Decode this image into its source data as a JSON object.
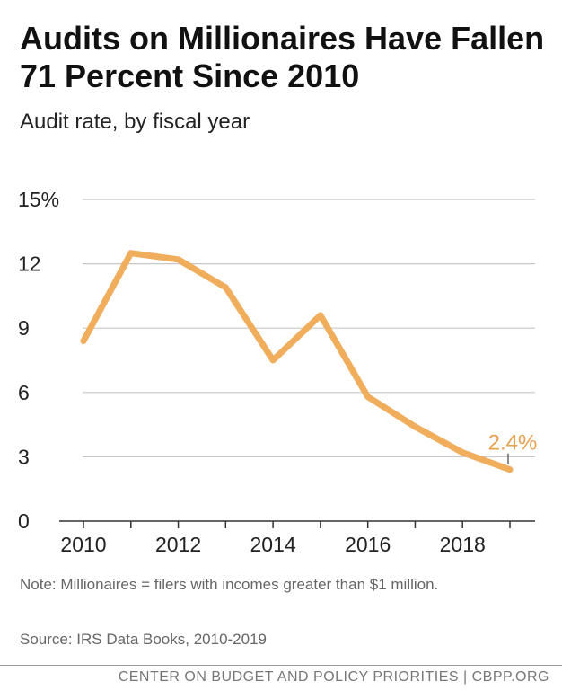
{
  "title": "Audits on Millionaires Have Fallen 71 Percent Since 2010",
  "subtitle": "Audit rate, by fiscal year",
  "note": "Note: Millionaires = filers with incomes greater than $1 million.",
  "source": "Source: IRS Data Books, 2010-2019",
  "footer": "CENTER ON BUDGET AND POLICY PRIORITIES | CBPP.ORG",
  "colors": {
    "line": "#f0ad5c",
    "label": "#e8a24e",
    "grid": "#c8c8c8",
    "axis": "#333333"
  },
  "chart_data": {
    "type": "line",
    "title": "Audits on Millionaires Have Fallen 71 Percent Since 2010",
    "subtitle": "Audit rate, by fiscal year",
    "xlabel": "",
    "ylabel": "",
    "x": [
      2010,
      2011,
      2012,
      2013,
      2014,
      2015,
      2016,
      2017,
      2018,
      2019
    ],
    "series": [
      {
        "values": [
          8.4,
          12.5,
          12.2,
          10.9,
          7.5,
          9.6,
          5.8,
          4.4,
          3.2,
          2.4
        ]
      }
    ],
    "ylim": [
      0,
      15
    ],
    "yticks": [
      0,
      3,
      6,
      9,
      12,
      15
    ],
    "ytick_labels": [
      "0",
      "3",
      "6",
      "9",
      "12",
      "15%"
    ],
    "xticks": [
      2010,
      2012,
      2014,
      2016,
      2018
    ],
    "xtick_labels": [
      "2010",
      "2012",
      "2014",
      "2016",
      "2018"
    ],
    "grid": true,
    "annotations": [
      {
        "x": 2019,
        "y": 2.4,
        "text": "2.4%"
      }
    ]
  }
}
